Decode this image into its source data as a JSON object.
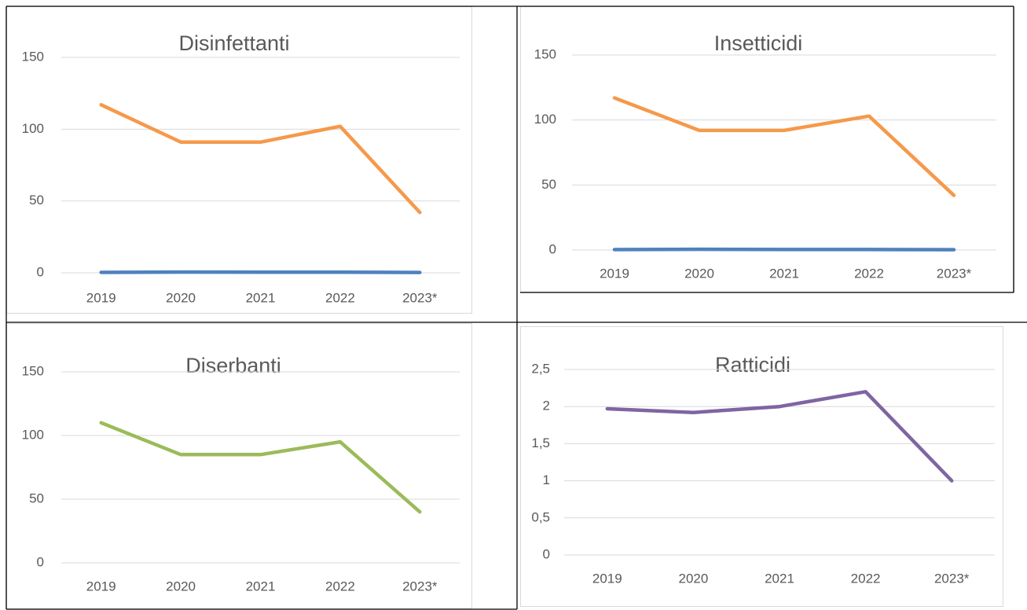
{
  "chart_data": [
    {
      "type": "line",
      "title": "Disinfettanti",
      "categories": [
        "2019",
        "2020",
        "2021",
        "2022",
        "2023*"
      ],
      "series": [
        {
          "color": "#f5994b",
          "values": [
            117,
            91,
            91,
            102,
            42
          ]
        },
        {
          "color": "#4f81bd",
          "values": [
            0.3,
            0.5,
            0.4,
            0.4,
            0.2
          ]
        }
      ],
      "ylim": [
        0,
        150
      ],
      "yticks": [
        0,
        50,
        100,
        150
      ],
      "grid": true
    },
    {
      "type": "line",
      "title": "Insetticidi",
      "categories": [
        "2019",
        "2020",
        "2021",
        "2022",
        "2023*"
      ],
      "series": [
        {
          "color": "#f5994b",
          "values": [
            117,
            92,
            92,
            103,
            42
          ]
        },
        {
          "color": "#4f81bd",
          "values": [
            0.3,
            0.5,
            0.4,
            0.4,
            0.2
          ]
        }
      ],
      "ylim": [
        0,
        150
      ],
      "yticks": [
        0,
        50,
        100,
        150
      ],
      "grid": true
    },
    {
      "type": "line",
      "title": "Diserbanti",
      "categories": [
        "2019",
        "2020",
        "2021",
        "2022",
        "2023*"
      ],
      "series": [
        {
          "color": "#9bbb59",
          "values": [
            110,
            85,
            85,
            95,
            40
          ]
        }
      ],
      "ylim": [
        0,
        150
      ],
      "yticks": [
        0,
        50,
        100,
        150
      ],
      "grid": true
    },
    {
      "type": "line",
      "title": "Ratticidi",
      "categories": [
        "2019",
        "2020",
        "2021",
        "2022",
        "2023*"
      ],
      "series": [
        {
          "color": "#8064a2",
          "values": [
            1.97,
            1.92,
            2.0,
            2.2,
            1.0
          ]
        }
      ],
      "ylim": [
        0,
        2.5
      ],
      "yticks": [
        0,
        {
          "value": 0.5,
          "label": "0,5"
        },
        1,
        {
          "value": 1.5,
          "label": "1,5"
        },
        2,
        {
          "value": 2.5,
          "label": "2,5"
        }
      ],
      "grid": true
    }
  ]
}
